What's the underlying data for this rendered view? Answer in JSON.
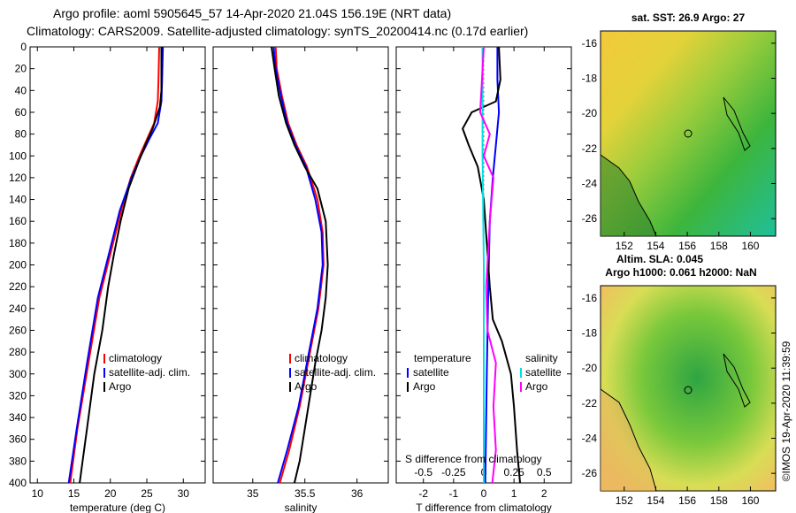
{
  "header": {
    "line1": "Argo profile: aoml 5905645_57 14-Apr-2020 21.04S 156.19E (NRT data)",
    "line2": "Climatology: CARS2009. Satellite-adjusted climatology: synTS_20200414.nc (0.17d earlier)"
  },
  "colors": {
    "climatology": "#ff0000",
    "satellite": "#0000ff",
    "argo": "#000000",
    "salinity": "#ff00ff",
    "sat_salinity": "#00e0e0"
  },
  "depth_ticks": [
    "0",
    "20",
    "40",
    "60",
    "80",
    "100",
    "120",
    "140",
    "160",
    "180",
    "200",
    "220",
    "240",
    "260",
    "280",
    "300",
    "320",
    "340",
    "360",
    "380",
    "400"
  ],
  "chart_data": [
    {
      "type": "line",
      "title": "",
      "xlabel": "temperature (deg C)",
      "ylabel": "depth",
      "xlim": [
        9,
        33
      ],
      "ylim": [
        400,
        0
      ],
      "x_ticks": [
        "10",
        "15",
        "20",
        "25",
        "30"
      ],
      "legend": [
        "climatology",
        "satellite-adj. clim.",
        "Argo"
      ],
      "series": [
        {
          "name": "climatology",
          "points": [
            [
              26.7,
              0
            ],
            [
              26.6,
              30
            ],
            [
              26.5,
              50
            ],
            [
              26.0,
              70
            ],
            [
              25.0,
              85
            ],
            [
              24.0,
              100
            ],
            [
              22.8,
              120
            ],
            [
              21.5,
              150
            ],
            [
              20.0,
              190
            ],
            [
              18.5,
              230
            ],
            [
              17.0,
              290
            ],
            [
              15.5,
              350
            ],
            [
              14.5,
              400
            ]
          ]
        },
        {
          "name": "satellite-adj. clim.",
          "points": [
            [
              27.2,
              0
            ],
            [
              27.1,
              30
            ],
            [
              27.0,
              50
            ],
            [
              26.5,
              70
            ],
            [
              25.3,
              85
            ],
            [
              24.2,
              100
            ],
            [
              22.9,
              120
            ],
            [
              21.3,
              150
            ],
            [
              19.8,
              190
            ],
            [
              18.3,
              230
            ],
            [
              16.8,
              290
            ],
            [
              15.4,
              350
            ],
            [
              14.3,
              400
            ]
          ]
        },
        {
          "name": "Argo",
          "points": [
            [
              27.0,
              0
            ],
            [
              27.0,
              40
            ],
            [
              26.8,
              55
            ],
            [
              25.8,
              75
            ],
            [
              24.8,
              90
            ],
            [
              23.9,
              105
            ],
            [
              22.5,
              130
            ],
            [
              21.4,
              160
            ],
            [
              20.5,
              190
            ],
            [
              19.7,
              220
            ],
            [
              18.9,
              260
            ],
            [
              17.8,
              300
            ],
            [
              16.8,
              350
            ],
            [
              16.2,
              380
            ],
            [
              15.8,
              400
            ]
          ]
        }
      ]
    },
    {
      "type": "line",
      "title": "",
      "xlabel": "salinity",
      "ylabel": "depth",
      "xlim": [
        34.62,
        36.3
      ],
      "ylim": [
        400,
        0
      ],
      "x_ticks": [
        "35",
        "35.5",
        "36"
      ],
      "legend": [
        "climatology",
        "satellite-adj. clim.",
        "Argo"
      ],
      "series": [
        {
          "name": "climatology",
          "points": [
            [
              35.22,
              0
            ],
            [
              35.23,
              20
            ],
            [
              35.28,
              45
            ],
            [
              35.34,
              70
            ],
            [
              35.42,
              90
            ],
            [
              35.52,
              110
            ],
            [
              35.62,
              140
            ],
            [
              35.67,
              170
            ],
            [
              35.68,
              200
            ],
            [
              35.63,
              240
            ],
            [
              35.55,
              280
            ],
            [
              35.45,
              330
            ],
            [
              35.35,
              370
            ],
            [
              35.26,
              400
            ]
          ]
        },
        {
          "name": "satellite-adj. clim.",
          "points": [
            [
              35.2,
              0
            ],
            [
              35.22,
              20
            ],
            [
              35.27,
              45
            ],
            [
              35.33,
              70
            ],
            [
              35.41,
              90
            ],
            [
              35.51,
              110
            ],
            [
              35.6,
              140
            ],
            [
              35.66,
              170
            ],
            [
              35.67,
              200
            ],
            [
              35.62,
              240
            ],
            [
              35.54,
              280
            ],
            [
              35.44,
              330
            ],
            [
              35.33,
              370
            ],
            [
              35.24,
              400
            ]
          ]
        },
        {
          "name": "Argo",
          "points": [
            [
              35.18,
              0
            ],
            [
              35.21,
              20
            ],
            [
              35.25,
              45
            ],
            [
              35.32,
              70
            ],
            [
              35.4,
              90
            ],
            [
              35.5,
              110
            ],
            [
              35.62,
              130
            ],
            [
              35.7,
              160
            ],
            [
              35.72,
              200
            ],
            [
              35.7,
              230
            ],
            [
              35.66,
              260
            ],
            [
              35.6,
              290
            ],
            [
              35.55,
              320
            ],
            [
              35.5,
              350
            ],
            [
              35.45,
              380
            ],
            [
              35.4,
              400
            ]
          ]
        }
      ]
    },
    {
      "type": "line",
      "title": "",
      "xlabel": "T difference from climatology",
      "x2label": "S difference from climatology",
      "ylabel": "depth",
      "xlim": [
        -2.9,
        2.9
      ],
      "x2lim": [
        -0.725,
        0.725
      ],
      "ylim": [
        400,
        0
      ],
      "x_ticks": [
        "-2",
        "-1",
        "0",
        "1",
        "2"
      ],
      "x2_ticks": [
        "-0.5",
        "-0.25",
        "0",
        "0.25",
        "0.5"
      ],
      "legend_left": [
        "temperature",
        "satellite",
        "Argo"
      ],
      "legend_right": [
        "salinity",
        "satellite",
        "Argo"
      ],
      "series": [
        {
          "name": "temperature satellite",
          "axis": "T",
          "points": [
            [
              0.45,
              0
            ],
            [
              0.45,
              30
            ],
            [
              0.5,
              60
            ],
            [
              0.4,
              90
            ],
            [
              0.3,
              120
            ],
            [
              0.2,
              160
            ],
            [
              0.15,
              220
            ],
            [
              0.1,
              300
            ],
            [
              0.05,
              400
            ]
          ]
        },
        {
          "name": "temperature Argo",
          "axis": "T",
          "points": [
            [
              0.5,
              0
            ],
            [
              0.55,
              30
            ],
            [
              0.4,
              50
            ],
            [
              -0.4,
              60
            ],
            [
              -0.7,
              75
            ],
            [
              -0.5,
              90
            ],
            [
              -0.2,
              110
            ],
            [
              0.0,
              140
            ],
            [
              0.1,
              180
            ],
            [
              0.2,
              220
            ],
            [
              0.3,
              250
            ],
            [
              0.6,
              270
            ],
            [
              0.9,
              300
            ],
            [
              1.0,
              330
            ],
            [
              1.1,
              370
            ],
            [
              1.2,
              400
            ]
          ]
        },
        {
          "name": "salinity satellite",
          "axis": "S",
          "points": [
            [
              -0.01,
              0
            ],
            [
              -0.01,
              100
            ],
            [
              0.0,
              200
            ],
            [
              0.0,
              300
            ],
            [
              0.0,
              400
            ]
          ]
        },
        {
          "name": "salinity Argo",
          "axis": "S",
          "points": [
            [
              0.0,
              0
            ],
            [
              -0.02,
              40
            ],
            [
              -0.03,
              60
            ],
            [
              0.05,
              80
            ],
            [
              0.0,
              100
            ],
            [
              0.08,
              120
            ],
            [
              0.05,
              160
            ],
            [
              0.02,
              220
            ],
            [
              0.03,
              260
            ],
            [
              0.1,
              290
            ],
            [
              0.08,
              330
            ],
            [
              0.1,
              370
            ],
            [
              0.07,
              400
            ]
          ]
        }
      ]
    }
  ],
  "maps": {
    "sst": {
      "title": "sat. SST: 26.9 Argo: 27",
      "lat_ticks": [
        "-16",
        "-18",
        "-20",
        "-22",
        "-24",
        "-26"
      ],
      "lon_ticks": [
        "152",
        "154",
        "156",
        "158",
        "160"
      ]
    },
    "sla": {
      "title1": "Altim. SLA: 0.045",
      "title2": "Argo h1000: 0.061 h2000: NaN",
      "lat_ticks": [
        "-16",
        "-18",
        "-20",
        "-22",
        "-24",
        "-26"
      ],
      "lon_ticks": [
        "152",
        "154",
        "156",
        "158",
        "160"
      ]
    }
  },
  "credit": "©IMOS 19-Apr-2020 11:39:59"
}
